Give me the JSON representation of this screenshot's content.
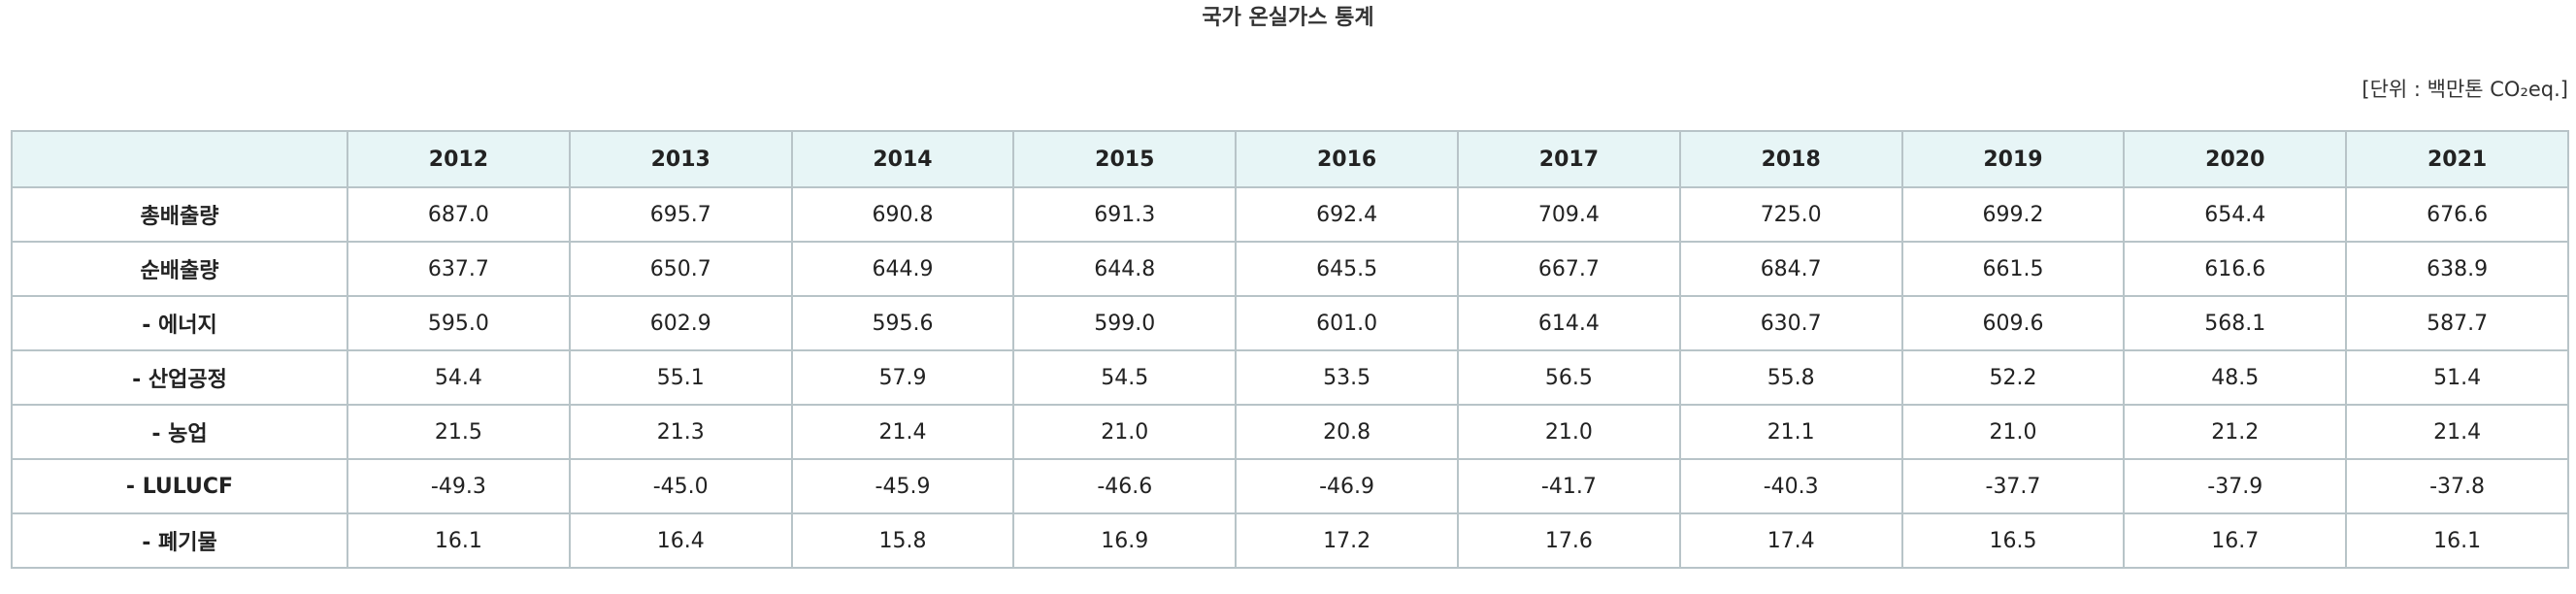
{
  "title": "국가 온실가스 통계",
  "unit": "[단위 : 백만톤 CO₂eq.]",
  "table": {
    "corner": "",
    "years": [
      "2012",
      "2013",
      "2014",
      "2015",
      "2016",
      "2017",
      "2018",
      "2019",
      "2020",
      "2021"
    ],
    "rows": [
      {
        "label": "총배출량",
        "values": [
          "687.0",
          "695.7",
          "690.8",
          "691.3",
          "692.4",
          "709.4",
          "725.0",
          "699.2",
          "654.4",
          "676.6"
        ]
      },
      {
        "label": "순배출량",
        "values": [
          "637.7",
          "650.7",
          "644.9",
          "644.8",
          "645.5",
          "667.7",
          "684.7",
          "661.5",
          "616.6",
          "638.9"
        ]
      },
      {
        "label": "- 에너지",
        "values": [
          "595.0",
          "602.9",
          "595.6",
          "599.0",
          "601.0",
          "614.4",
          "630.7",
          "609.6",
          "568.1",
          "587.7"
        ]
      },
      {
        "label": "- 산업공정",
        "values": [
          "54.4",
          "55.1",
          "57.9",
          "54.5",
          "53.5",
          "56.5",
          "55.8",
          "52.2",
          "48.5",
          "51.4"
        ]
      },
      {
        "label": "- 농업",
        "values": [
          "21.5",
          "21.3",
          "21.4",
          "21.0",
          "20.8",
          "21.0",
          "21.1",
          "21.0",
          "21.2",
          "21.4"
        ]
      },
      {
        "label": "- LULUCF",
        "values": [
          "-49.3",
          "-45.0",
          "-45.9",
          "-46.6",
          "-46.9",
          "-41.7",
          "-40.3",
          "-37.7",
          "-37.9",
          "-37.8"
        ]
      },
      {
        "label": "- 폐기물",
        "values": [
          "16.1",
          "16.4",
          "15.8",
          "16.9",
          "17.2",
          "17.6",
          "17.4",
          "16.5",
          "16.7",
          "16.1"
        ]
      }
    ]
  }
}
